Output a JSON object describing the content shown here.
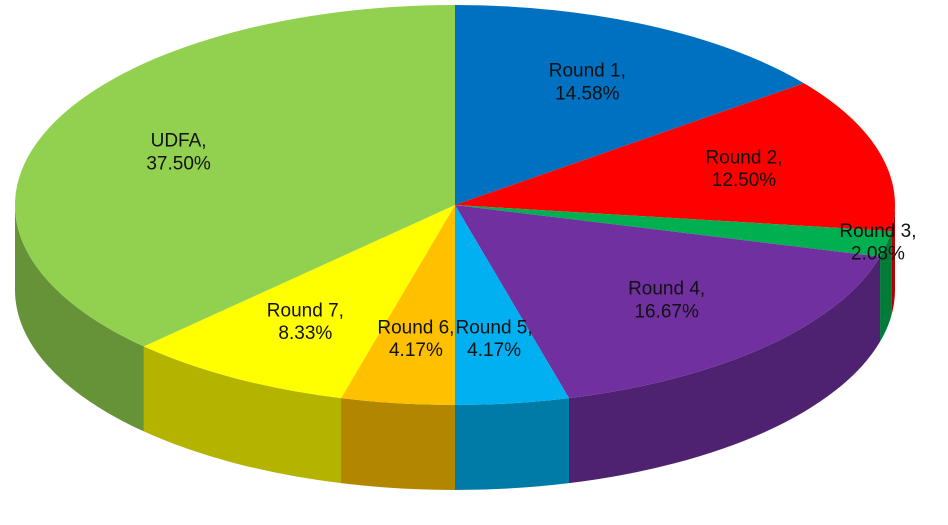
{
  "chart_data": {
    "type": "pie",
    "categories": [
      "Round 1,",
      "Round 2,",
      "Round 3,",
      "Round 4,",
      "Round 5,",
      "Round 6,",
      "Round 7,",
      "UDFA,"
    ],
    "values": [
      14.58,
      12.5,
      2.08,
      16.67,
      4.17,
      4.17,
      8.33,
      37.5
    ],
    "value_labels": [
      "14.58%",
      "12.50%",
      "2.08%",
      "16.67%",
      "4.17%",
      "4.17%",
      "8.33%",
      "37.50%"
    ],
    "colors": [
      "#0070c0",
      "#ff0000",
      "#00b050",
      "#7030a0",
      "#00b0f0",
      "#ffc000",
      "#ffff00",
      "#92d050"
    ]
  }
}
